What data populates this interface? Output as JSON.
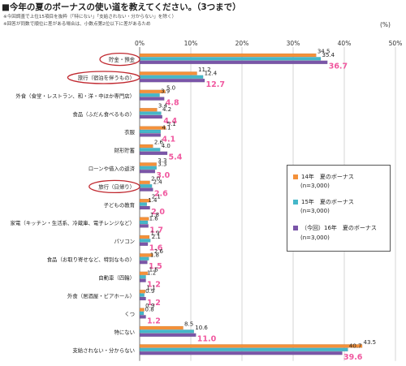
{
  "title": "■今年の夏のボーナスの使い道を教えてください。（3つまで）",
  "notes": [
    "※今回調査で上位15項目を抜粋（「特にない」「支給されない・分からない」を除く）",
    "※回答が同数で順位に差がある場合は、小数点第2位以下に差があるため"
  ],
  "unit": "(%)",
  "chart_data": {
    "type": "bar",
    "orientation": "horizontal",
    "xlim": [
      0,
      50
    ],
    "x_ticks": [
      "0%",
      "10%",
      "20%",
      "30%",
      "40%",
      "50%"
    ],
    "grid": true,
    "categories": [
      "貯金・預金",
      "旅行（宿泊を伴うもの）",
      "外食（食堂・レストラン、和・洋・中ほか専門店）",
      "食品（ふだん食べるもの）",
      "衣服",
      "財形貯蓄",
      "ローンや借入の返済",
      "旅行（日帰り）",
      "子どもの教育",
      "家電（キッチン・生活系、冷蔵庫、電子レンジなど）",
      "パソコン",
      "食品（お取り寄せなど、特別なもの）",
      "自動車（四輪）",
      "外食（居酒屋・ビアホール）",
      "くつ",
      "特にない",
      "支給されない・分からない"
    ],
    "highlighted_categories": [
      "貯金・預金",
      "旅行（宿泊を伴うもの）",
      "旅行（日帰り）"
    ],
    "series": [
      {
        "name": "14年　夏のボーナス",
        "color": "#f4913a",
        "values": [
          34.5,
          11.2,
          5.0,
          3.4,
          5.1,
          2.6,
          3.3,
          2.0,
          2.1,
          1.8,
          1.9,
          2.6,
          1.6,
          1.1,
          0.9,
          8.5,
          43.5
        ]
      },
      {
        "name": "15年　夏のボーナス",
        "color": "#45b7c9",
        "values": [
          35.4,
          12.4,
          3.9,
          4.2,
          4.1,
          4.0,
          3.3,
          2.4,
          1.4,
          1.6,
          2.1,
          1.8,
          1.2,
          0.9,
          0.8,
          10.6,
          40.7
        ]
      },
      {
        "name": "（今回）16年　夏のボーナス",
        "color": "#7a55a8",
        "values": [
          36.7,
          12.7,
          4.8,
          4.4,
          4.1,
          5.4,
          3.0,
          2.6,
          2.0,
          1.7,
          1.6,
          1.5,
          1.2,
          1.2,
          1.2,
          11.0,
          39.6
        ]
      }
    ],
    "legend": {
      "placement": "right",
      "n_label": "(n=3,000)"
    },
    "highlight_color": "#f0589f",
    "circle_color": "#c0282f"
  }
}
